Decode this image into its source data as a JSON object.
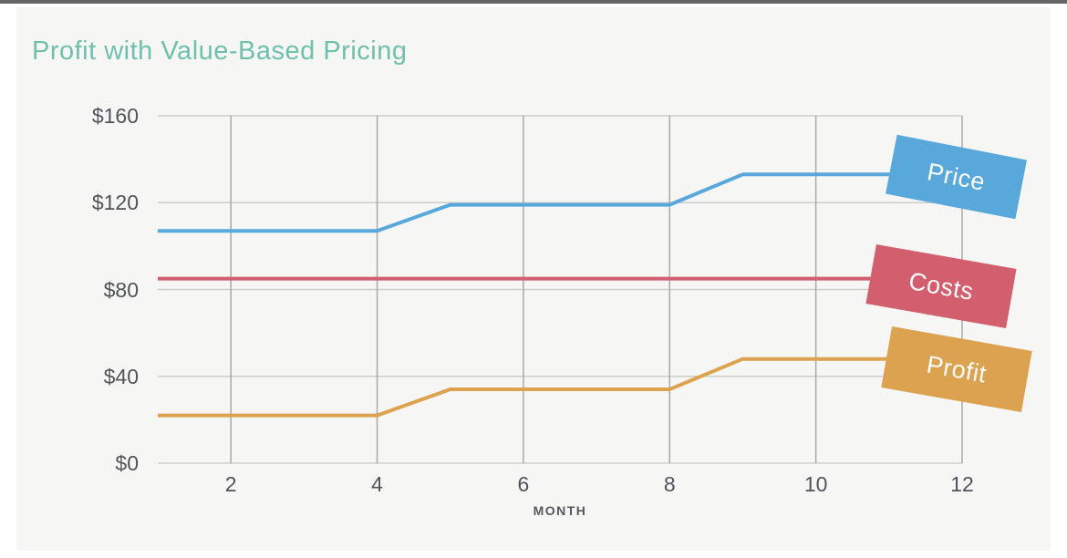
{
  "window": {
    "top_edge_color": "#3f3f3f"
  },
  "panel": {
    "background": "#f6f6f4"
  },
  "colors": {
    "title": "#6fc0ac",
    "grid_horizontal": "#cdcdcd",
    "grid_vertical": "#a9a9a9",
    "axis_text": "#50545a",
    "xlabel_text": "#55585e"
  },
  "chart_data": {
    "type": "line",
    "title": "Profit with Value-Based Pricing",
    "xlabel": "MONTH",
    "ylabel": "",
    "xlim": [
      1,
      12
    ],
    "ylim": [
      0,
      160
    ],
    "grid": true,
    "legend_position": "right-rotated-boxes",
    "x": [
      1,
      2,
      3,
      4,
      5,
      6,
      7,
      8,
      9,
      10,
      11,
      12
    ],
    "xtick_values": [
      2,
      4,
      6,
      8,
      10,
      12
    ],
    "xtick_labels": [
      "2",
      "4",
      "6",
      "8",
      "10",
      "12"
    ],
    "ytick_values": [
      0,
      40,
      80,
      120,
      160
    ],
    "ytick_labels": [
      "$0",
      "$40",
      "$80",
      "$120",
      "$160"
    ],
    "series": [
      {
        "name": "Price",
        "color": "#58a8dc",
        "values": [
          107,
          107,
          107,
          107,
          119,
          119,
          119,
          119,
          133,
          133,
          133,
          133
        ]
      },
      {
        "name": "Costs",
        "color": "#d35e6e",
        "values": [
          85,
          85,
          85,
          85,
          85,
          85,
          85,
          85,
          85,
          85,
          85,
          85
        ]
      },
      {
        "name": "Profit",
        "color": "#dca24f",
        "values": [
          22,
          22,
          22,
          22,
          34,
          34,
          34,
          34,
          48,
          48,
          48,
          48
        ]
      }
    ]
  }
}
